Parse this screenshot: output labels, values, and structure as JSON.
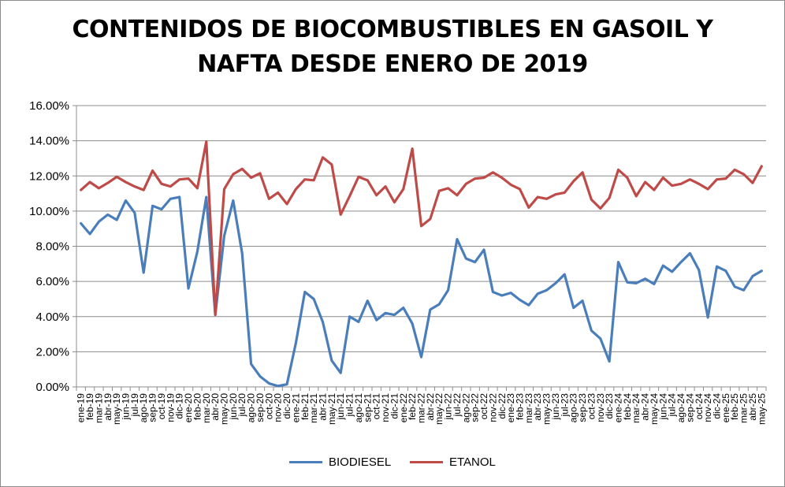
{
  "chart_data": {
    "type": "line",
    "title": "CONTENIDOS DE BIOCOMBUSTIBLES EN GASOIL Y NAFTA DESDE ENERO DE 2019",
    "title_lines": [
      "CONTENIDOS DE BIOCOMBUSTIBLES EN GASOIL Y",
      "NAFTA DESDE ENERO DE 2019"
    ],
    "xlabel": "",
    "ylabel": "",
    "ylim": [
      0,
      16
    ],
    "y_ticks": [
      "0.00%",
      "2.00%",
      "4.00%",
      "6.00%",
      "8.00%",
      "10.00%",
      "12.00%",
      "14.00%",
      "16.00%"
    ],
    "grid": "horizontal",
    "legend_position": "bottom",
    "categories": [
      "ene-19",
      "feb-19",
      "mar-19",
      "abr-19",
      "may-19",
      "jun-19",
      "jul-19",
      "ago-19",
      "sep-19",
      "oct-19",
      "nov-19",
      "dic-19",
      "ene-20",
      "feb-20",
      "mar-20",
      "abr-20",
      "may-20",
      "jun-20",
      "jul-20",
      "ago-20",
      "sep-20",
      "oct-20",
      "nov-20",
      "dic-20",
      "ene-21",
      "feb-21",
      "mar-21",
      "abr-21",
      "may-21",
      "jun-21",
      "jul-21",
      "ago-21",
      "sep-21",
      "oct-21",
      "nov-21",
      "dic-21",
      "ene-22",
      "feb-22",
      "mar-22",
      "abr-22",
      "may-22",
      "jun-22",
      "jul-22",
      "ago-22",
      "sep-22",
      "oct-22",
      "nov-22",
      "dic-22",
      "ene-23",
      "feb-23",
      "mar-23",
      "abr-23",
      "may-23",
      "jun-23",
      "jul-23",
      "ago-23",
      "sep-23",
      "oct-23",
      "nov-23",
      "dic-23",
      "ene-24",
      "feb-24",
      "mar-24",
      "abr-24",
      "may-24",
      "jun-24",
      "jul-24",
      "ago-24",
      "sep-24",
      "oct-24",
      "nov-24",
      "dic-24",
      "ene-25",
      "feb-25",
      "mar-25",
      "abr-25",
      "may-25"
    ],
    "series": [
      {
        "name": "BIODIESEL",
        "color": "#4a7ebb",
        "values": [
          9.3,
          8.7,
          9.4,
          9.8,
          9.5,
          10.6,
          9.9,
          6.5,
          10.3,
          10.1,
          10.7,
          10.8,
          5.6,
          7.7,
          10.8,
          4.1,
          8.6,
          10.6,
          7.6,
          1.3,
          0.6,
          0.2,
          0.05,
          0.15,
          2.5,
          5.4,
          5.0,
          3.7,
          1.5,
          0.8,
          4.0,
          3.7,
          4.9,
          3.8,
          4.2,
          4.1,
          4.5,
          3.6,
          1.7,
          4.4,
          4.7,
          5.5,
          8.4,
          7.3,
          7.1,
          7.8,
          5.4,
          5.2,
          5.35,
          4.95,
          4.65,
          5.3,
          5.5,
          5.9,
          6.4,
          4.5,
          4.9,
          3.2,
          2.75,
          1.45,
          7.1,
          5.95,
          5.9,
          6.15,
          5.85,
          6.9,
          6.55,
          7.1,
          7.6,
          6.65,
          3.95,
          6.85,
          6.6,
          5.7,
          5.5,
          6.3,
          6.6
        ]
      },
      {
        "name": "ETANOL",
        "color": "#be4b48",
        "values": [
          11.2,
          11.65,
          11.3,
          11.6,
          11.95,
          11.65,
          11.4,
          11.2,
          12.3,
          11.55,
          11.4,
          11.8,
          11.85,
          11.3,
          13.95,
          4.1,
          11.25,
          12.1,
          12.4,
          11.9,
          12.15,
          10.7,
          11.05,
          10.4,
          11.25,
          11.8,
          11.75,
          13.05,
          12.65,
          9.8,
          10.85,
          11.95,
          11.75,
          10.9,
          11.4,
          10.5,
          11.25,
          13.55,
          9.15,
          9.55,
          11.15,
          11.3,
          10.9,
          11.55,
          11.85,
          11.9,
          12.2,
          11.9,
          11.5,
          11.25,
          10.2,
          10.8,
          10.7,
          10.95,
          11.05,
          11.7,
          12.2,
          10.65,
          10.15,
          10.75,
          12.35,
          11.9,
          10.85,
          11.65,
          11.2,
          11.9,
          11.45,
          11.55,
          11.8,
          11.55,
          11.25,
          11.8,
          11.85,
          12.35,
          12.1,
          11.6,
          12.55
        ]
      }
    ]
  }
}
